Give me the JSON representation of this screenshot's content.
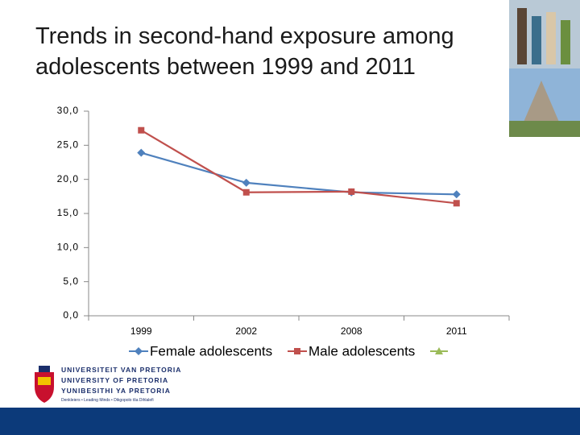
{
  "chart_data": {
    "type": "line",
    "title": "Trends in second-hand exposure among adolescents between 1999 and 2011",
    "categories": [
      "1999",
      "2002",
      "2008",
      "2011"
    ],
    "series": [
      {
        "name": "Female adolescents",
        "color": "#4f81bd",
        "marker": "diamond",
        "values": [
          23.9,
          19.5,
          18.1,
          17.8
        ]
      },
      {
        "name": "Male adolescents",
        "color": "#c0504d",
        "marker": "square",
        "values": [
          27.2,
          18.1,
          18.2,
          16.5
        ]
      }
    ],
    "ylim": [
      0,
      30
    ],
    "yticks": [
      {
        "value": 0,
        "label": "0,0"
      },
      {
        "value": 5,
        "label": "5,0"
      },
      {
        "value": 10,
        "label": "10,0"
      },
      {
        "value": 15,
        "label": "15,0"
      },
      {
        "value": 20,
        "label": "20,0"
      },
      {
        "value": 25,
        "label": "25,0"
      },
      {
        "value": 30,
        "label": "30,0"
      }
    ],
    "grid": false
  },
  "logo": {
    "lines": [
      "UNIVERSITEIT VAN PRETORIA",
      "UNIVERSITY OF PRETORIA",
      "YUNIBESITHI YA PRETORIA"
    ],
    "tagline": "Denkleiers • Leading Minds • Dikgopolo tša Dihlalefi"
  }
}
